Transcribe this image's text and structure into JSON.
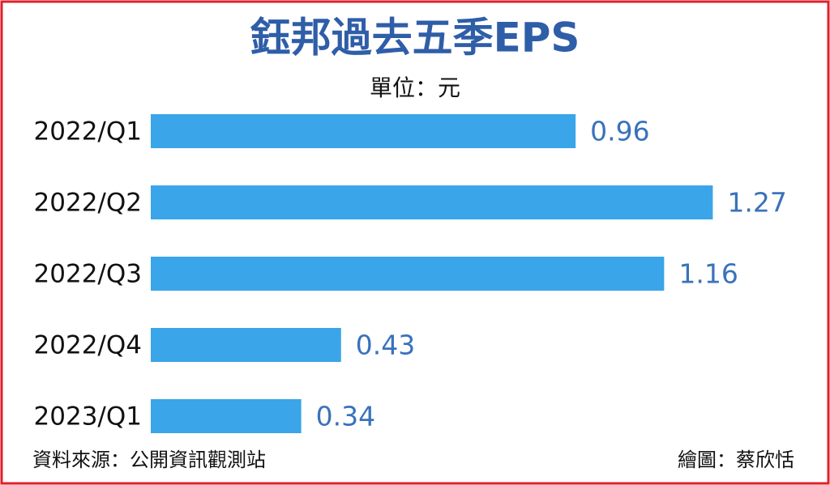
{
  "chart_data": {
    "type": "barh",
    "title": "鈺邦過去五季EPS",
    "subtitle": "單位：元",
    "categories": [
      "2022/Q1",
      "2022/Q2",
      "2022/Q3",
      "2022/Q4",
      "2023/Q1"
    ],
    "values": [
      0.96,
      1.27,
      1.16,
      0.43,
      0.34
    ],
    "color": "#3aa5e8",
    "label_color": "#3a72bb",
    "xlim": [
      0,
      1.5
    ],
    "source": "資料來源：公開資訊觀測站",
    "credit": "繪圖：蔡欣恬"
  }
}
